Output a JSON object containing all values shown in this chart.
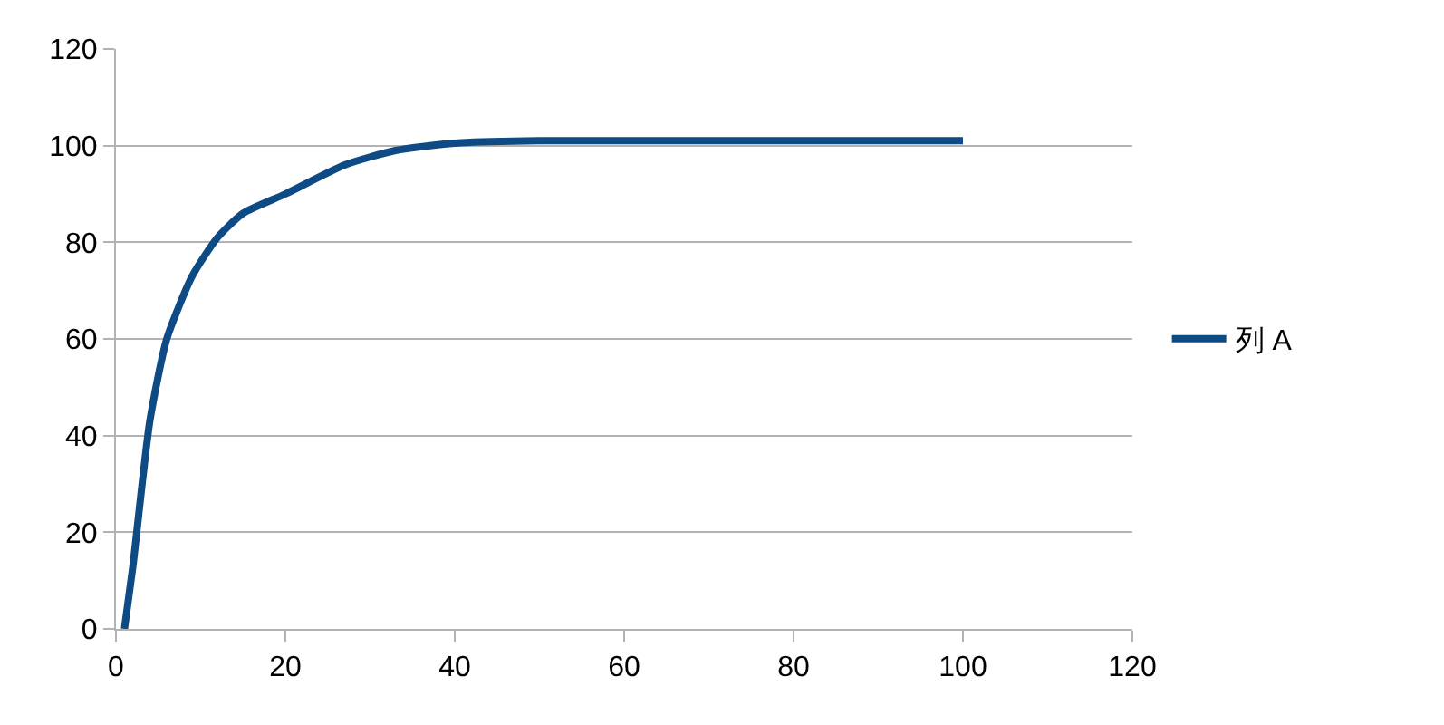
{
  "chart_data": {
    "type": "line",
    "legend": "right",
    "grid": "y",
    "marker": "none",
    "line_style": "solid",
    "xlim": [
      0,
      120
    ],
    "xticks": [
      0,
      20,
      40,
      60,
      80,
      100,
      120
    ],
    "ylim": [
      0,
      120
    ],
    "yticks": [
      0,
      20,
      40,
      60,
      80,
      100,
      120
    ],
    "series": [
      {
        "name": "列 A",
        "color": "#0e4a84",
        "x": [
          1,
          2,
          4,
          6,
          9,
          12,
          15,
          20,
          27,
          33,
          40,
          50,
          60,
          70,
          80,
          90,
          100
        ],
        "values": [
          0,
          13,
          43,
          60,
          73,
          81,
          86,
          90,
          96,
          99,
          100.5,
          101,
          101,
          101,
          101,
          101,
          101
        ]
      }
    ]
  }
}
